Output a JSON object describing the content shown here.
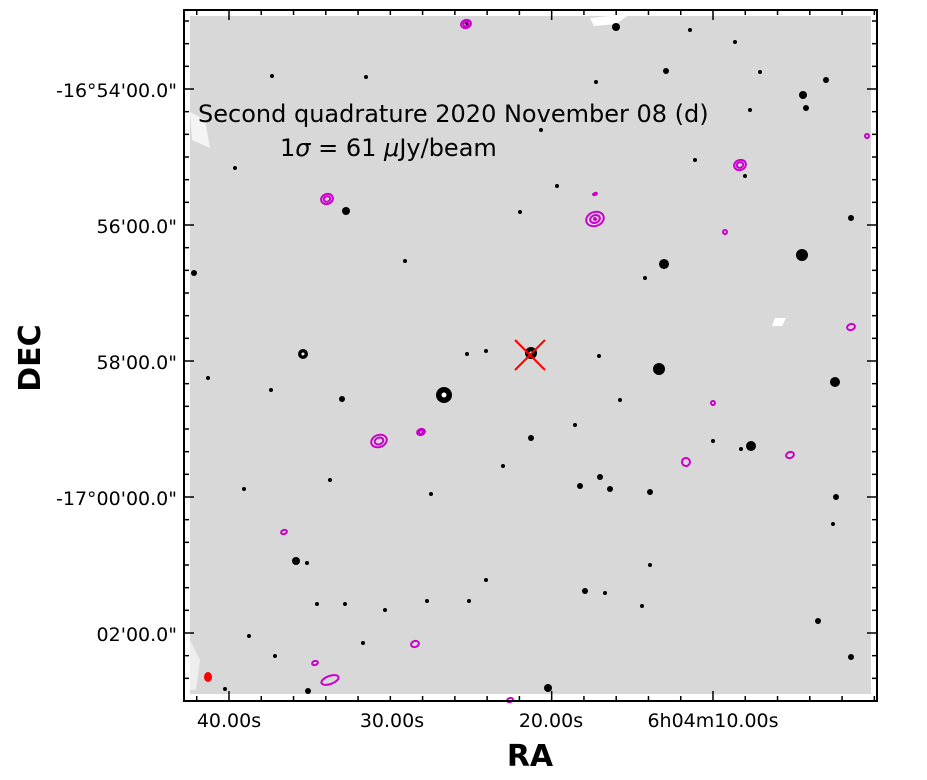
{
  "figure": {
    "annotation_line1": "Second quadrature 2020 November 08 (d)",
    "annotation_line2_prefix": "1",
    "annotation_line2_sigma": "σ",
    "annotation_line2_eq": " = 61 ",
    "annotation_line2_mu": "μ",
    "annotation_line2_unit": "Jy/beam",
    "x_axis_title": "RA",
    "y_axis_title": "DEC",
    "x_tick_labels": [
      "40.00s",
      "30.00s",
      "20.00s",
      "6h04m10.00s"
    ],
    "y_tick_labels": [
      "-16°54'00.0\"",
      "56'00.0\"",
      "58'00.0\"",
      "-17°00'00.0\"",
      "02'00.0\""
    ]
  },
  "colors": {
    "background_sky": "#d9d9d9",
    "stars": "#000000",
    "contours": "#cc00cc",
    "target_marker": "#ff0000",
    "beam": "#ff0000"
  },
  "markers": {
    "target": "cross",
    "beam": "filled-ellipse"
  }
}
